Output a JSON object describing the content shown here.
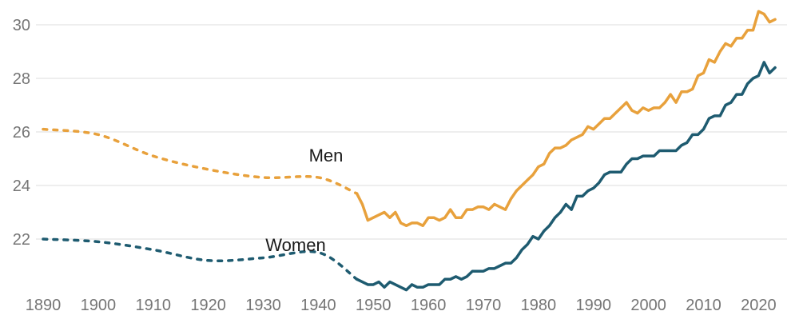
{
  "chart_data": {
    "type": "line",
    "title": "",
    "series_labels": {
      "men": "Men",
      "women": "Women"
    },
    "x_tick_labels": [
      "1890",
      "1900",
      "1910",
      "1920",
      "1930",
      "1940",
      "1950",
      "1960",
      "1970",
      "1980",
      "1990",
      "2000",
      "2010",
      "2020"
    ],
    "y_tick_labels": [
      "22",
      "24",
      "26",
      "28",
      "30"
    ],
    "xlim": [
      1890,
      2023
    ],
    "ylim": [
      20,
      31
    ],
    "grid": "horizontal-only",
    "legend_position": "inline-labels",
    "colors": {
      "men_line": "#E8A13C",
      "women_line": "#1E5B70",
      "grid_line": "#E3E3E3",
      "tick_text": "#757575",
      "series_label_text": "#1A1A1A",
      "background": "#FFFFFF"
    },
    "line_styles": {
      "dashed_segment_note": "decennial data 1890-1940 drawn dashed and connected to 1947",
      "solid_segment_note": "annual data 1947-2023 drawn solid"
    },
    "series": [
      {
        "name": "Men",
        "color_key": "men_line",
        "dashed": {
          "years": [
            1890,
            1900,
            1910,
            1920,
            1930,
            1940,
            1947
          ],
          "values": [
            26.1,
            25.9,
            25.1,
            24.6,
            24.3,
            24.3,
            23.7
          ]
        },
        "solid": {
          "start_year": 1947,
          "end_year": 2023,
          "values": [
            23.7,
            23.3,
            22.7,
            22.8,
            22.9,
            23.0,
            22.8,
            23.0,
            22.6,
            22.5,
            22.6,
            22.6,
            22.5,
            22.8,
            22.8,
            22.7,
            22.8,
            23.1,
            22.8,
            22.8,
            23.1,
            23.1,
            23.2,
            23.2,
            23.1,
            23.3,
            23.2,
            23.1,
            23.5,
            23.8,
            24.0,
            24.2,
            24.4,
            24.7,
            24.8,
            25.2,
            25.4,
            25.4,
            25.5,
            25.7,
            25.8,
            25.9,
            26.2,
            26.1,
            26.3,
            26.5,
            26.5,
            26.7,
            26.9,
            27.1,
            26.8,
            26.7,
            26.9,
            26.8,
            26.9,
            26.9,
            27.1,
            27.4,
            27.1,
            27.5,
            27.5,
            27.6,
            28.1,
            28.2,
            28.7,
            28.6,
            29.0,
            29.3,
            29.2,
            29.5,
            29.5,
            29.8,
            29.8,
            30.5,
            30.4,
            30.1,
            30.2
          ]
        }
      },
      {
        "name": "Women",
        "color_key": "women_line",
        "dashed": {
          "years": [
            1890,
            1900,
            1910,
            1920,
            1930,
            1940,
            1947
          ],
          "values": [
            22.0,
            21.9,
            21.6,
            21.2,
            21.3,
            21.5,
            20.5
          ]
        },
        "solid": {
          "start_year": 1947,
          "end_year": 2023,
          "values": [
            20.5,
            20.4,
            20.3,
            20.3,
            20.4,
            20.2,
            20.4,
            20.3,
            20.2,
            20.1,
            20.3,
            20.2,
            20.2,
            20.3,
            20.3,
            20.3,
            20.5,
            20.5,
            20.6,
            20.5,
            20.6,
            20.8,
            20.8,
            20.8,
            20.9,
            20.9,
            21.0,
            21.1,
            21.1,
            21.3,
            21.6,
            21.8,
            22.1,
            22.0,
            22.3,
            22.5,
            22.8,
            23.0,
            23.3,
            23.1,
            23.6,
            23.6,
            23.8,
            23.9,
            24.1,
            24.4,
            24.5,
            24.5,
            24.5,
            24.8,
            25.0,
            25.0,
            25.1,
            25.1,
            25.1,
            25.3,
            25.3,
            25.3,
            25.3,
            25.5,
            25.6,
            25.9,
            25.9,
            26.1,
            26.5,
            26.6,
            26.6,
            27.0,
            27.1,
            27.4,
            27.4,
            27.8,
            28.0,
            28.1,
            28.6,
            28.2,
            28.4
          ]
        }
      }
    ]
  }
}
